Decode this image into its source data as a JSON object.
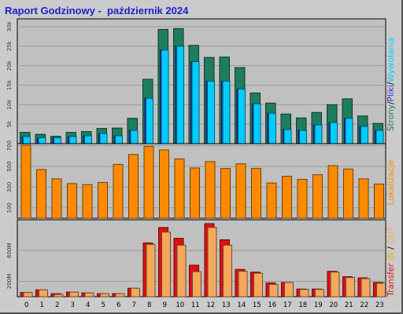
{
  "title": "Raport Godzinowy -  październik 2024",
  "colors": {
    "background": "#cbcbcb",
    "plot_background": "#c0c0c0",
    "title": "#1b23c9",
    "strony": "#1e7d5e",
    "pliki": "#2b2bd1",
    "wywolania": "#00ccff",
    "lokalizacje": "#ff8a00",
    "transfer_in": "#e01010",
    "transfer_out": "#f5a75a"
  },
  "chart_data": [
    {
      "type": "bar",
      "panel": "top",
      "categories": [
        "0",
        "1",
        "2",
        "3",
        "4",
        "5",
        "6",
        "7",
        "8",
        "9",
        "10",
        "11",
        "12",
        "13",
        "14",
        "15",
        "16",
        "17",
        "18",
        "19",
        "20",
        "21",
        "22",
        "23"
      ],
      "ylim": [
        0,
        32000
      ],
      "ytick_labels": [
        "5k",
        "10k",
        "15k",
        "20k",
        "25k",
        "30k"
      ],
      "ylabel_parts": [
        "Strony",
        "/",
        "Pliki",
        "/",
        "Wywołania"
      ],
      "series": [
        {
          "name": "Strony",
          "values": [
            2900,
            2400,
            1900,
            2900,
            3100,
            3900,
            4000,
            6500,
            16500,
            29300,
            29500,
            25200,
            22100,
            22200,
            19500,
            13000,
            10400,
            7600,
            6600,
            8000,
            10000,
            11500,
            7100,
            5200
          ]
        },
        {
          "name": "Pliki",
          "values": [
            1800,
            1500,
            1500,
            1800,
            2000,
            2600,
            2000,
            3400,
            11600,
            24000,
            25000,
            21000,
            16000,
            16000,
            14000,
            10200,
            7800,
            3600,
            3400,
            4800,
            5400,
            6500,
            4400,
            3400
          ]
        },
        {
          "name": "Wywołania",
          "values": [
            1800,
            1500,
            1500,
            1800,
            2000,
            2600,
            2000,
            3400,
            11600,
            24000,
            25000,
            21000,
            16000,
            16000,
            14000,
            10200,
            7800,
            3600,
            3400,
            4800,
            5400,
            6500,
            4400,
            3400
          ]
        }
      ]
    },
    {
      "type": "bar",
      "panel": "middle",
      "categories": [
        "0",
        "1",
        "2",
        "3",
        "4",
        "5",
        "6",
        "7",
        "8",
        "9",
        "10",
        "11",
        "12",
        "13",
        "14",
        "15",
        "16",
        "17",
        "18",
        "19",
        "20",
        "21",
        "22",
        "23"
      ],
      "ylim": [
        0,
        720
      ],
      "ytick_labels": [
        "100",
        "300",
        "500",
        "700"
      ],
      "ylabel": "Lokalizacje",
      "series": [
        {
          "name": "Lokalizacje",
          "values": [
            705,
            470,
            380,
            335,
            325,
            345,
            520,
            615,
            695,
            660,
            573,
            485,
            547,
            480,
            525,
            482,
            340,
            405,
            375,
            420,
            507,
            475,
            380,
            330
          ]
        }
      ]
    },
    {
      "type": "bar",
      "panel": "bottom",
      "categories": [
        "0",
        "1",
        "2",
        "3",
        "4",
        "5",
        "6",
        "7",
        "8",
        "9",
        "10",
        "11",
        "12",
        "13",
        "14",
        "15",
        "16",
        "17",
        "18",
        "19",
        "20",
        "21",
        "22",
        "23"
      ],
      "ylim": [
        0,
        1000
      ],
      "ytick_labels": [
        "200M",
        "600M"
      ],
      "ylabel_parts": [
        "Transfer",
        " ",
        "IN",
        " / ",
        "OUT"
      ],
      "series": [
        {
          "name": "IN",
          "values": [
            55,
            90,
            40,
            60,
            50,
            40,
            40,
            110,
            700,
            900,
            760,
            410,
            950,
            740,
            355,
            320,
            180,
            185,
            100,
            100,
            330,
            260,
            245,
            185
          ]
        },
        {
          "name": "OUT",
          "values": [
            55,
            90,
            30,
            60,
            50,
            40,
            40,
            110,
            680,
            840,
            670,
            325,
            900,
            670,
            330,
            305,
            160,
            185,
            95,
            95,
            320,
            250,
            235,
            175
          ]
        }
      ]
    }
  ]
}
